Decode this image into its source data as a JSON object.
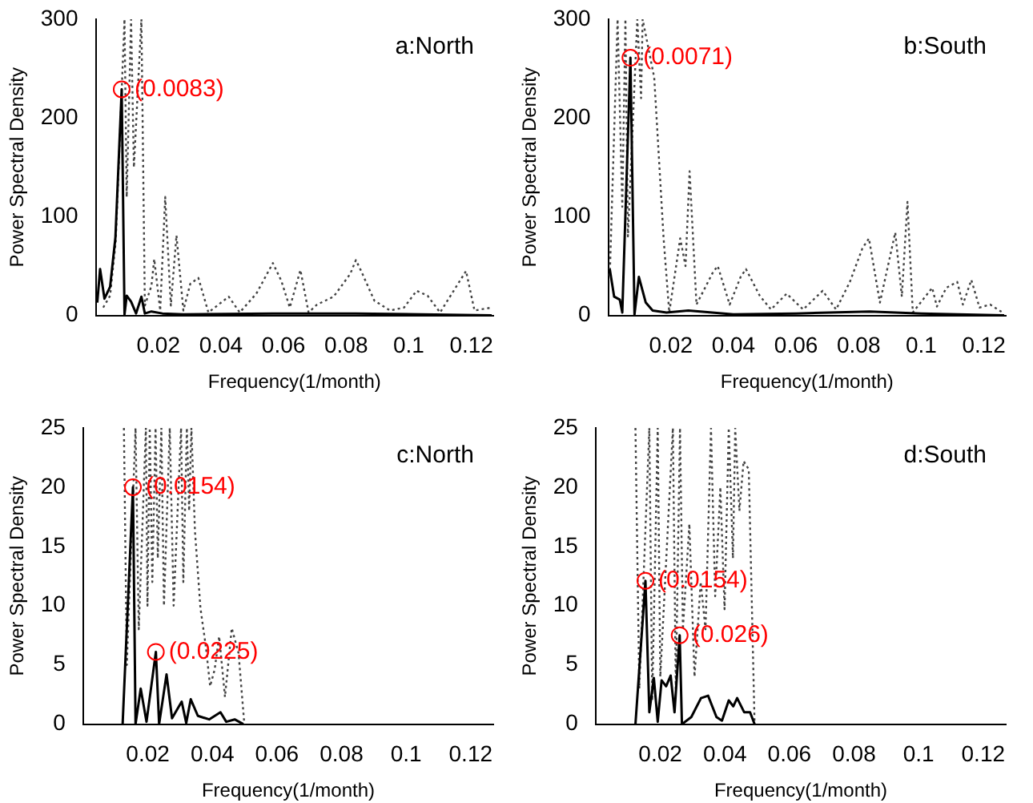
{
  "chart_data": [
    {
      "type": "line",
      "xlabel": "Frequency(1/month)",
      "ylabel": "Power Spectral Density",
      "xlim": [
        0,
        0.127
      ],
      "xticks": [
        0.02,
        0.04,
        0.06,
        0.08,
        0.1,
        0.12
      ],
      "ylim": [
        0,
        300
      ],
      "yticks": [
        0,
        100,
        200,
        300
      ],
      "grid": false,
      "legend": false,
      "marker": "none",
      "annotations": [
        "a:North",
        {
          "text": "(0.0083)",
          "x": 0.0083,
          "y": 229
        }
      ],
      "series": [
        {
          "color": "#000000",
          "line_style": "solid",
          "x": [
            0.0005,
            0.0014,
            0.0028,
            0.0046,
            0.0063,
            0.0083,
            0.0092,
            0.0099,
            0.0113,
            0.0129,
            0.0146,
            0.0157,
            0.0178,
            0.0213,
            0.028,
            0.0566,
            0.083,
            0.1265
          ],
          "values": [
            13,
            47,
            17,
            29,
            79,
            229,
            1,
            20,
            14,
            2,
            19,
            2,
            4,
            2,
            1,
            2,
            2,
            0
          ]
        },
        {
          "color": "#444444",
          "line_style": "dotted",
          "x": [
            0.0024,
            0.0046,
            0.0064,
            0.0092,
            0.0099,
            0.0113,
            0.0122,
            0.0146,
            0.0157,
            0.0178,
            0.0187,
            0.0206,
            0.0222,
            0.024,
            0.0258,
            0.028,
            0.0302,
            0.0328,
            0.036,
            0.0425,
            0.046,
            0.0513,
            0.0566,
            0.0593,
            0.062,
            0.0654,
            0.068,
            0.0707,
            0.076,
            0.0813,
            0.0831,
            0.0848,
            0.089,
            0.094,
            0.0985,
            0.1025,
            0.106,
            0.11,
            0.1183,
            0.121,
            0.1265
          ],
          "values": [
            8,
            20,
            75,
            300,
            120,
            300,
            150,
            300,
            10,
            30,
            57,
            5,
            120,
            10,
            81,
            5,
            32,
            38,
            3,
            19,
            3,
            22,
            53,
            35,
            8,
            46,
            3,
            11,
            19,
            42,
            56,
            45,
            15,
            5,
            8,
            25,
            20,
            3,
            45,
            5,
            8
          ]
        }
      ]
    },
    {
      "type": "line",
      "xlabel": "Frequency(1/month)",
      "ylabel": "Power Spectral Density",
      "xlim": [
        0,
        0.127
      ],
      "xticks": [
        0.02,
        0.04,
        0.06,
        0.08,
        0.1,
        0.12
      ],
      "ylim": [
        0,
        300
      ],
      "yticks": [
        0,
        100,
        200,
        300
      ],
      "grid": false,
      "legend": false,
      "marker": "none",
      "annotations": [
        "b:South",
        {
          "text": "(0.0071)",
          "x": 0.0071,
          "y": 261
        }
      ],
      "series": [
        {
          "color": "#000000",
          "line_style": "solid",
          "x": [
            0.0005,
            0.0019,
            0.0037,
            0.0045,
            0.0071,
            0.0084,
            0.0098,
            0.012,
            0.0142,
            0.0186,
            0.0256,
            0.04,
            0.06,
            0.0835,
            0.1,
            0.1265
          ],
          "values": [
            47,
            19,
            16,
            3,
            261,
            1,
            39,
            13,
            5,
            3,
            5,
            1,
            2,
            4,
            2,
            0
          ]
        },
        {
          "color": "#444444",
          "line_style": "dotted",
          "x": [
            0.0005,
            0.003,
            0.0045,
            0.0055,
            0.0063,
            0.0093,
            0.0105,
            0.011,
            0.0147,
            0.0177,
            0.0195,
            0.023,
            0.0247,
            0.026,
            0.0282,
            0.0335,
            0.035,
            0.0388,
            0.0423,
            0.044,
            0.0484,
            0.052,
            0.057,
            0.0623,
            0.0685,
            0.0728,
            0.0772,
            0.0812,
            0.0833,
            0.0868,
            0.0917,
            0.0938,
            0.0956,
            0.0973,
            0.1035,
            0.105,
            0.108,
            0.1115,
            0.1133,
            0.116,
            0.1186,
            0.122,
            0.1265
          ],
          "values": [
            40,
            300,
            110,
            300,
            80,
            300,
            220,
            300,
            241,
            78,
            3,
            78,
            50,
            146,
            11,
            44,
            50,
            11,
            39,
            47,
            20,
            6,
            22,
            6,
            25,
            6,
            34,
            68,
            78,
            13,
            84,
            19,
            115,
            3,
            28,
            9,
            28,
            34,
            11,
            36,
            8,
            11,
            2
          ]
        }
      ]
    },
    {
      "type": "line",
      "xlabel": "Frequency(1/month)",
      "ylabel": "Power Spectral Density",
      "xlim": [
        0,
        0.127
      ],
      "xticks": [
        0.02,
        0.04,
        0.06,
        0.08,
        0.1,
        0.12
      ],
      "ylim": [
        0,
        25
      ],
      "yticks": [
        0,
        5,
        10,
        15,
        20,
        25
      ],
      "grid": false,
      "legend": false,
      "marker": "none",
      "annotations": [
        "c:North",
        {
          "text": "(0.0154)",
          "x": 0.0154,
          "y": 20
        },
        {
          "text": "(0.0225)",
          "x": 0.0225,
          "y": 6.1
        }
      ],
      "series": [
        {
          "color": "#000000",
          "line_style": "solid",
          "x": [
            0.0122,
            0.0154,
            0.0162,
            0.0178,
            0.0196,
            0.0225,
            0.0235,
            0.0258,
            0.0275,
            0.0305,
            0.0319,
            0.0333,
            0.0355,
            0.039,
            0.0425,
            0.0443,
            0.0469,
            0.0496
          ],
          "values": [
            0,
            20,
            0,
            3,
            0.2,
            6.1,
            0,
            4.2,
            0.5,
            1.9,
            0.1,
            2.1,
            0.7,
            0.4,
            1,
            0.2,
            0.4,
            0
          ]
        },
        {
          "color": "#444444",
          "line_style": "dotted",
          "x": [
            0.0126,
            0.0135,
            0.0162,
            0.0172,
            0.0194,
            0.0199,
            0.0206,
            0.0214,
            0.0224,
            0.0231,
            0.0242,
            0.025,
            0.0268,
            0.028,
            0.0303,
            0.031,
            0.0321,
            0.0328,
            0.0335,
            0.0346,
            0.0363,
            0.038,
            0.0393,
            0.0407,
            0.0421,
            0.0439,
            0.046,
            0.0481,
            0.0499
          ],
          "values": [
            25,
            5,
            25,
            8,
            25,
            10,
            25,
            12,
            25,
            14,
            25,
            10,
            25,
            10,
            25,
            12,
            25,
            18,
            25,
            16.3,
            9.8,
            6.5,
            3.2,
            4.6,
            7.4,
            2.3,
            8.1,
            6,
            0
          ]
        }
      ]
    },
    {
      "type": "line",
      "xlabel": "Frequency(1/month)",
      "ylabel": "Power Spectral Density",
      "xlim": [
        0,
        0.127
      ],
      "xticks": [
        0.02,
        0.04,
        0.06,
        0.08,
        0.1,
        0.12
      ],
      "ylim": [
        0,
        25
      ],
      "yticks": [
        0,
        5,
        10,
        15,
        20,
        25
      ],
      "grid": false,
      "legend": false,
      "marker": "none",
      "annotations": [
        "d:South",
        {
          "text": "(0.0154)",
          "x": 0.0154,
          "y": 12.1
        },
        {
          "text": "(0.026)",
          "x": 0.026,
          "y": 7.5
        }
      ],
      "series": [
        {
          "color": "#000000",
          "line_style": "solid",
          "x": [
            0.0123,
            0.0154,
            0.0166,
            0.018,
            0.0192,
            0.0204,
            0.0218,
            0.0232,
            0.0244,
            0.026,
            0.0267,
            0.0296,
            0.0326,
            0.0348,
            0.0374,
            0.0391,
            0.0412,
            0.0426,
            0.0438,
            0.046,
            0.0478,
            0.0492
          ],
          "values": [
            0,
            12.1,
            1,
            3.9,
            0.2,
            3.7,
            3.2,
            4.1,
            1,
            7.5,
            0,
            0.6,
            2.2,
            2.4,
            0.6,
            0.3,
            2,
            1.5,
            2.2,
            1,
            1,
            0
          ]
        },
        {
          "color": "#444444",
          "line_style": "dotted",
          "x": [
            0.0123,
            0.0135,
            0.0166,
            0.0175,
            0.0192,
            0.02,
            0.0239,
            0.0248,
            0.0261,
            0.027,
            0.029,
            0.0306,
            0.0325,
            0.034,
            0.0357,
            0.037,
            0.0386,
            0.0399,
            0.0412,
            0.0425,
            0.0432,
            0.0445,
            0.0458,
            0.0474,
            0.0492
          ],
          "values": [
            25,
            3,
            25,
            2,
            25,
            4,
            25,
            3,
            25,
            8,
            16.9,
            4,
            12,
            8,
            25,
            10.8,
            20,
            9.7,
            25,
            14,
            25,
            18,
            22.2,
            21.5,
            0
          ]
        }
      ]
    }
  ]
}
